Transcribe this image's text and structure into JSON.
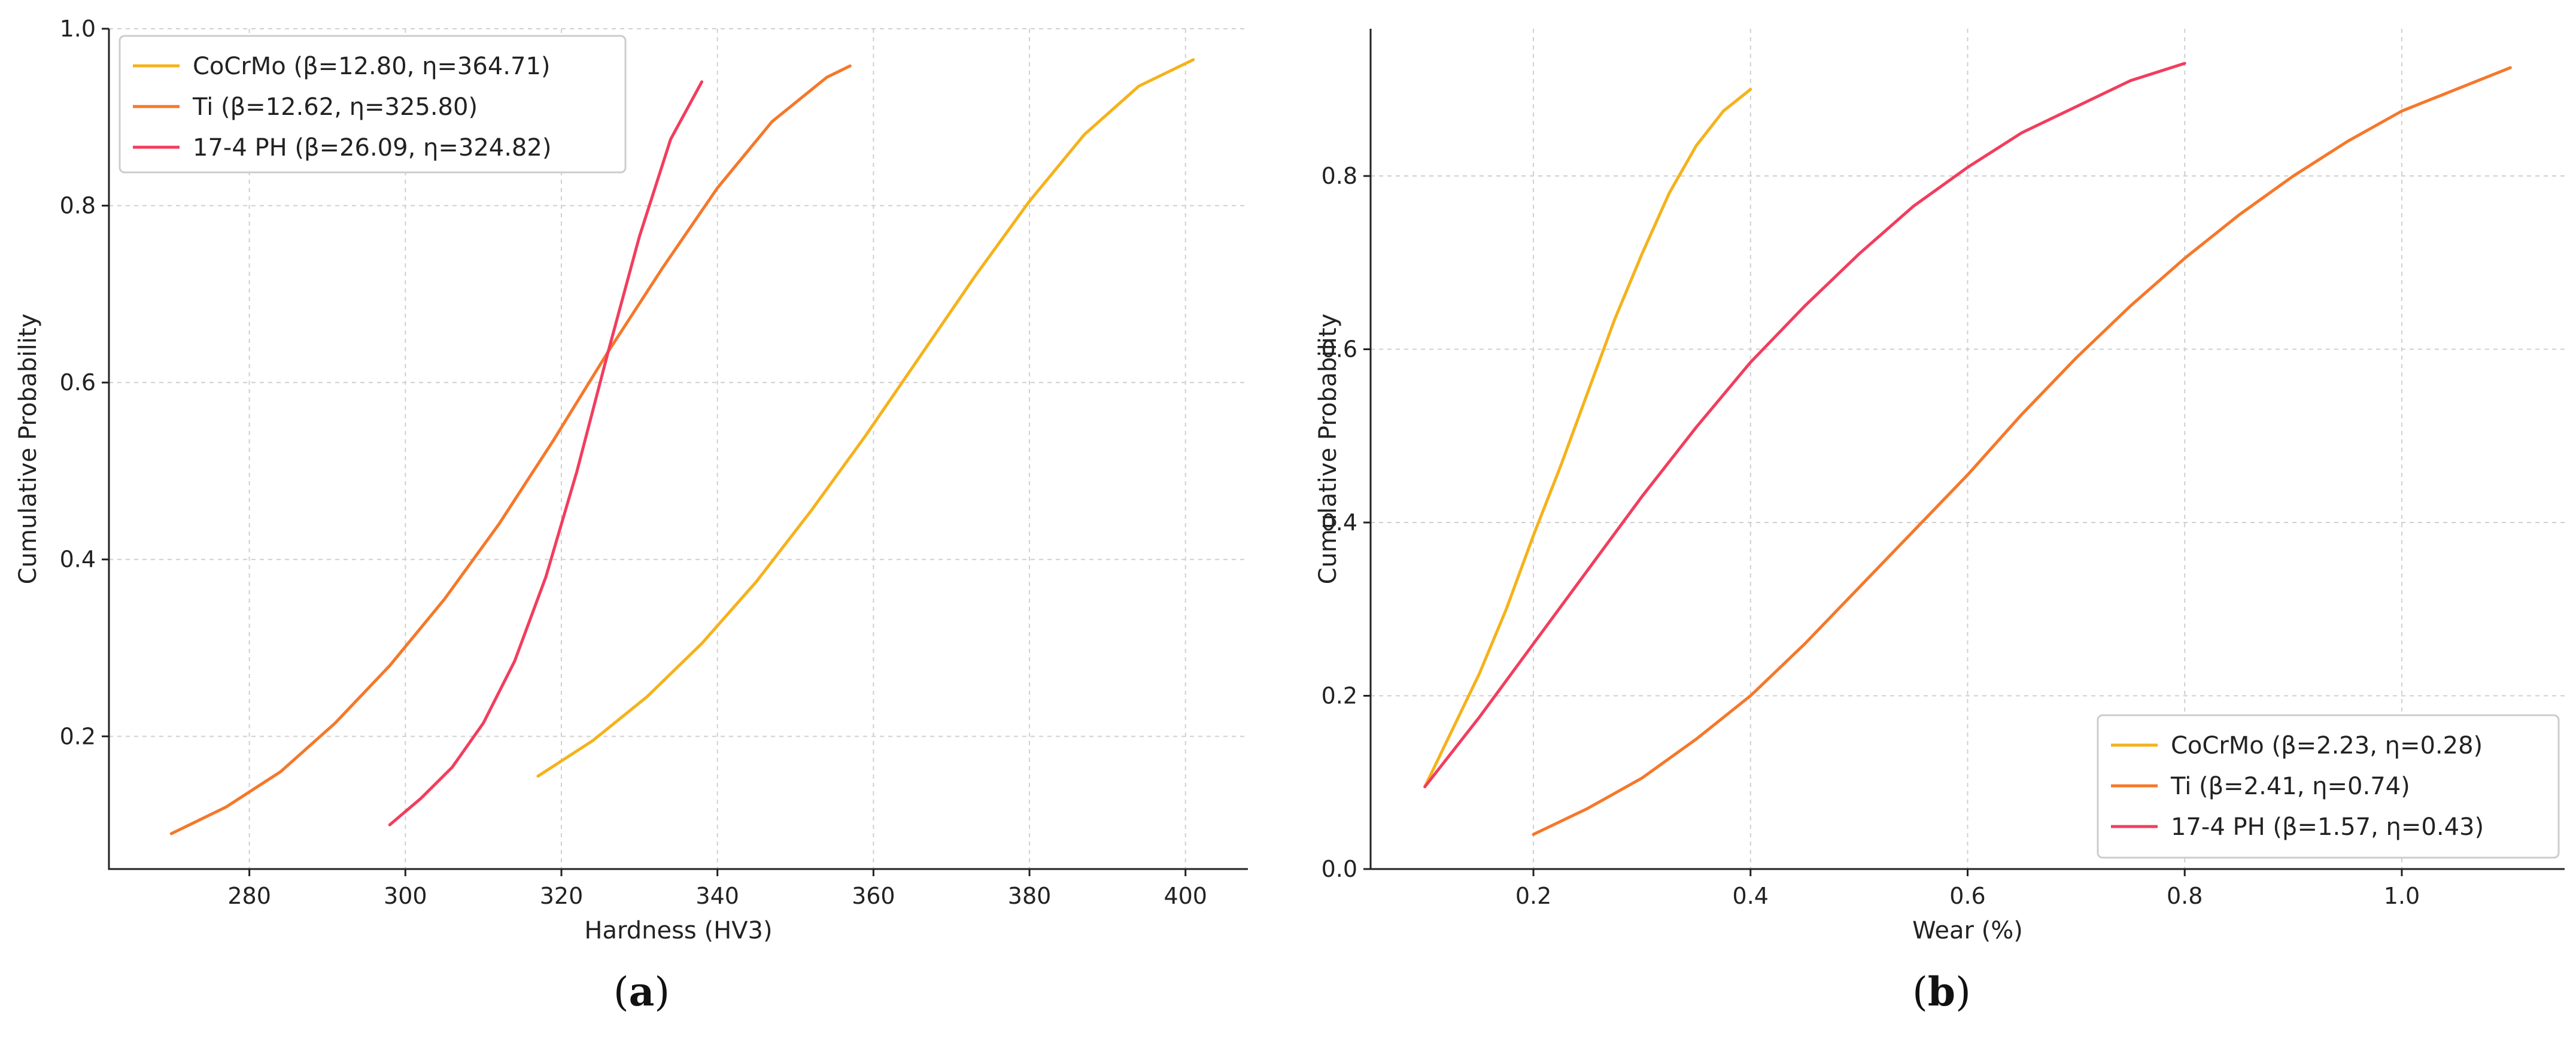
{
  "chart_data": [
    {
      "panel_label": "a",
      "type": "line",
      "xlabel": "Hardness (HV3)",
      "ylabel": "Cumulative Probability",
      "xlim": [
        262,
        408
      ],
      "ylim": [
        0.05,
        1.0
      ],
      "xticks": [
        "280",
        "300",
        "320",
        "340",
        "360",
        "380",
        "400"
      ],
      "yticks": [
        "0.2",
        "0.4",
        "0.6",
        "0.8",
        "1.0"
      ],
      "grid": true,
      "legend_position": "top-left",
      "series": [
        {
          "name": "CoCrMo (β=12.80, η=364.71)",
          "color": "#f5b21b",
          "x": [
            317,
            324,
            331,
            338,
            345,
            352,
            359,
            366,
            373,
            380,
            387,
            394,
            401
          ],
          "y": [
            0.155,
            0.195,
            0.245,
            0.305,
            0.375,
            0.455,
            0.54,
            0.63,
            0.72,
            0.805,
            0.88,
            0.935,
            0.965
          ]
        },
        {
          "name": "Ti (β=12.62, η=325.80)",
          "color": "#f5782a",
          "x": [
            270,
            277,
            284,
            291,
            298,
            305,
            312,
            319,
            326,
            333,
            340,
            347,
            354,
            357
          ],
          "y": [
            0.09,
            0.12,
            0.16,
            0.215,
            0.28,
            0.355,
            0.44,
            0.535,
            0.635,
            0.73,
            0.82,
            0.895,
            0.945,
            0.958
          ]
        },
        {
          "name": "17-4 PH (β=26.09, η=324.82)",
          "color": "#f23d5e",
          "x": [
            298,
            302,
            306,
            310,
            314,
            318,
            322,
            326,
            330,
            334,
            338
          ],
          "y": [
            0.1,
            0.13,
            0.165,
            0.215,
            0.285,
            0.38,
            0.5,
            0.635,
            0.765,
            0.875,
            0.94
          ]
        }
      ]
    },
    {
      "panel_label": "b",
      "type": "line",
      "xlabel": "Wear (%)",
      "ylabel": "Cumulative Probability",
      "xlim": [
        0.05,
        1.15
      ],
      "ylim": [
        0.0,
        0.97
      ],
      "xticks": [
        "0.2",
        "0.4",
        "0.6",
        "0.8",
        "1.0"
      ],
      "yticks": [
        "0.0",
        "0.2",
        "0.4",
        "0.6",
        "0.8"
      ],
      "grid": true,
      "legend_position": "bottom-right",
      "series": [
        {
          "name": "CoCrMo (β=2.23, η=0.28)",
          "color": "#f5b21b",
          "x": [
            0.1,
            0.125,
            0.15,
            0.175,
            0.2,
            0.225,
            0.25,
            0.275,
            0.3,
            0.325,
            0.35,
            0.375,
            0.4
          ],
          "y": [
            0.095,
            0.16,
            0.225,
            0.3,
            0.385,
            0.465,
            0.55,
            0.635,
            0.71,
            0.78,
            0.835,
            0.875,
            0.9
          ]
        },
        {
          "name": "Ti (β=2.41, η=0.74)",
          "color": "#f5782a",
          "x": [
            0.2,
            0.25,
            0.3,
            0.35,
            0.4,
            0.45,
            0.5,
            0.55,
            0.6,
            0.65,
            0.7,
            0.75,
            0.8,
            0.85,
            0.9,
            0.95,
            1.0,
            1.05,
            1.1
          ],
          "y": [
            0.04,
            0.07,
            0.105,
            0.15,
            0.2,
            0.26,
            0.325,
            0.39,
            0.455,
            0.525,
            0.59,
            0.65,
            0.705,
            0.755,
            0.8,
            0.84,
            0.875,
            0.9,
            0.925
          ]
        },
        {
          "name": "17-4 PH (β=1.57, η=0.43)",
          "color": "#f23d5e",
          "x": [
            0.1,
            0.15,
            0.2,
            0.25,
            0.3,
            0.35,
            0.4,
            0.45,
            0.5,
            0.55,
            0.6,
            0.65,
            0.7,
            0.75,
            0.8
          ],
          "y": [
            0.095,
            0.175,
            0.26,
            0.345,
            0.43,
            0.51,
            0.585,
            0.65,
            0.71,
            0.765,
            0.81,
            0.85,
            0.88,
            0.91,
            0.93
          ]
        }
      ]
    }
  ]
}
